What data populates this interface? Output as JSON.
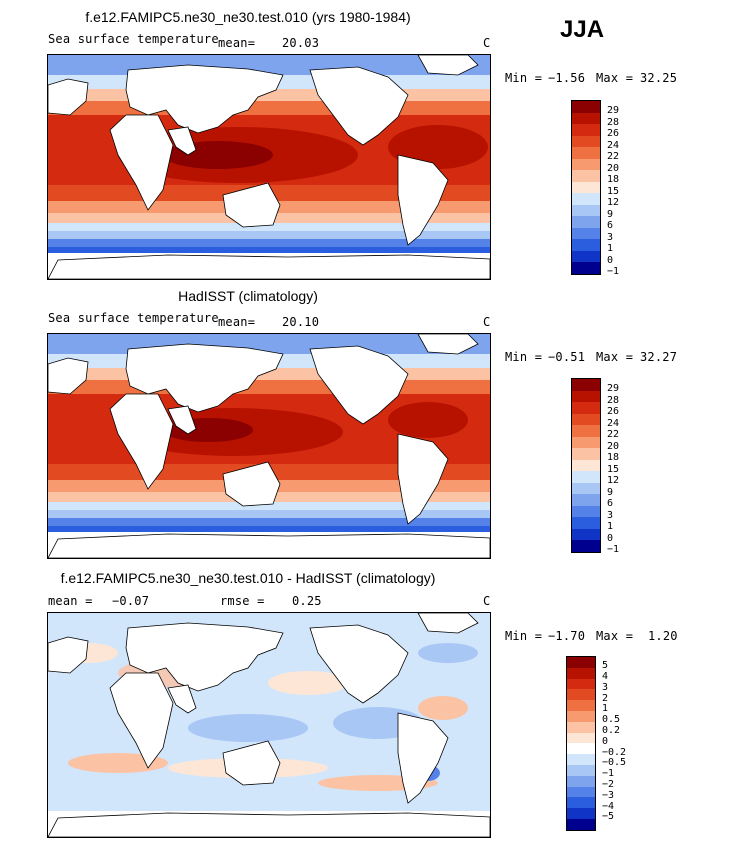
{
  "season": "JJA",
  "panels": [
    {
      "title": "f.e12.FAMIPC5.ne30_ne30.test.010 (yrs 1980-1984)",
      "left_label": "Sea surface temperature",
      "mean_label": "mean=",
      "mean_value": "20.03",
      "unit": "C",
      "min_label": "Min =",
      "min_value": "−1.56",
      "max_label": "Max =",
      "max_value": "32.25",
      "levels": [
        "29",
        "28",
        "26",
        "24",
        "22",
        "20",
        "18",
        "15",
        "12",
        "9",
        "6",
        "3",
        "1",
        "0",
        "−1"
      ],
      "colors": [
        "#8b0000",
        "#b71200",
        "#d42a10",
        "#e24a22",
        "#ef7040",
        "#f79a70",
        "#fcc2a4",
        "#fde6d6",
        "#d2e6fb",
        "#a9c7f5",
        "#7ea4ee",
        "#5582e9",
        "#2b5ddf",
        "#0f34c6",
        "#00008e"
      ]
    },
    {
      "title": "HadISST (climatology)",
      "left_label": "Sea surface temperature",
      "mean_label": "mean=",
      "mean_value": "20.10",
      "unit": "C",
      "min_label": "Min =",
      "min_value": "−0.51",
      "max_label": "Max =",
      "max_value": "32.27",
      "levels": [
        "29",
        "28",
        "26",
        "24",
        "22",
        "20",
        "18",
        "15",
        "12",
        "9",
        "6",
        "3",
        "1",
        "0",
        "−1"
      ],
      "colors": [
        "#8b0000",
        "#b71200",
        "#d42a10",
        "#e24a22",
        "#ef7040",
        "#f79a70",
        "#fcc2a4",
        "#fde6d6",
        "#d2e6fb",
        "#a9c7f5",
        "#7ea4ee",
        "#5582e9",
        "#2b5ddf",
        "#0f34c6",
        "#00008e"
      ]
    },
    {
      "title": "f.e12.FAMIPC5.ne30_ne30.test.010 - HadISST (climatology)",
      "mean_label": "mean =",
      "mean_value": "−0.07",
      "rmse_label": "rmse =",
      "rmse_value": "0.25",
      "unit": "C",
      "min_label": "Min =",
      "min_value": "−1.70",
      "max_label": "Max =",
      "max_value": "1.20",
      "levels": [
        "5",
        "4",
        "3",
        "2",
        "1",
        "0.5",
        "0.2",
        "0",
        "−0.2",
        "−0.5",
        "−1",
        "−2",
        "−3",
        "−4",
        "−5"
      ],
      "colors": [
        "#8b0000",
        "#b71200",
        "#d42a10",
        "#e24a22",
        "#ef7040",
        "#f79a70",
        "#fcc2a4",
        "#fde6d6",
        "#ffffff",
        "#d2e6fb",
        "#a9c7f5",
        "#7ea4ee",
        "#5582e9",
        "#2b5ddf",
        "#0f34c6",
        "#00008e"
      ]
    }
  ]
}
